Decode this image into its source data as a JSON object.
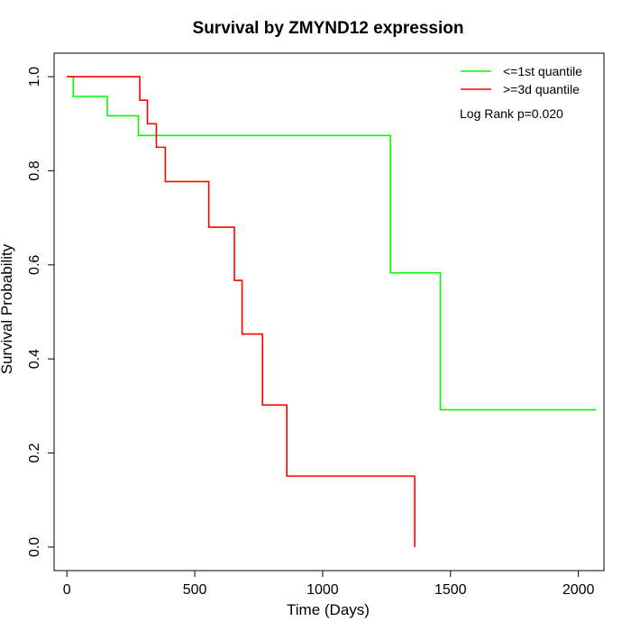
{
  "chart_data": {
    "type": "line",
    "title": "Survival by ZMYND12 expression",
    "xlabel": "Time (Days)",
    "ylabel": "Survival Probability",
    "xlim": [
      -50,
      2100
    ],
    "ylim": [
      -0.05,
      1.05
    ],
    "x_ticks": [
      0,
      500,
      1000,
      1500,
      2000
    ],
    "y_ticks": [
      0.0,
      0.2,
      0.4,
      0.6,
      0.8,
      1.0
    ],
    "x_tick_labels": [
      "0",
      "500",
      "1000",
      "1500",
      "2000"
    ],
    "y_tick_labels": [
      "0.0",
      "0.2",
      "0.4",
      "0.6",
      "0.8",
      "1.0"
    ],
    "legend_position": "top-right",
    "annotation": "Log Rank p=0.020",
    "series": [
      {
        "name": "<=1st quantile",
        "color": "#00ff00",
        "steps": [
          [
            0,
            1.0
          ],
          [
            25,
            0.958
          ],
          [
            158,
            0.917
          ],
          [
            280,
            0.875
          ],
          [
            1265,
            0.583
          ],
          [
            1460,
            0.292
          ],
          [
            2070,
            0.292
          ]
        ]
      },
      {
        "name": ">=3d quantile",
        "color": "#ff0000",
        "steps": [
          [
            0,
            1.0
          ],
          [
            285,
            0.95
          ],
          [
            315,
            0.9
          ],
          [
            350,
            0.85
          ],
          [
            385,
            0.777
          ],
          [
            555,
            0.68
          ],
          [
            655,
            0.567
          ],
          [
            685,
            0.453
          ],
          [
            765,
            0.302
          ],
          [
            860,
            0.151
          ],
          [
            1360,
            0.151
          ],
          [
            1360,
            0.0
          ]
        ]
      }
    ]
  }
}
